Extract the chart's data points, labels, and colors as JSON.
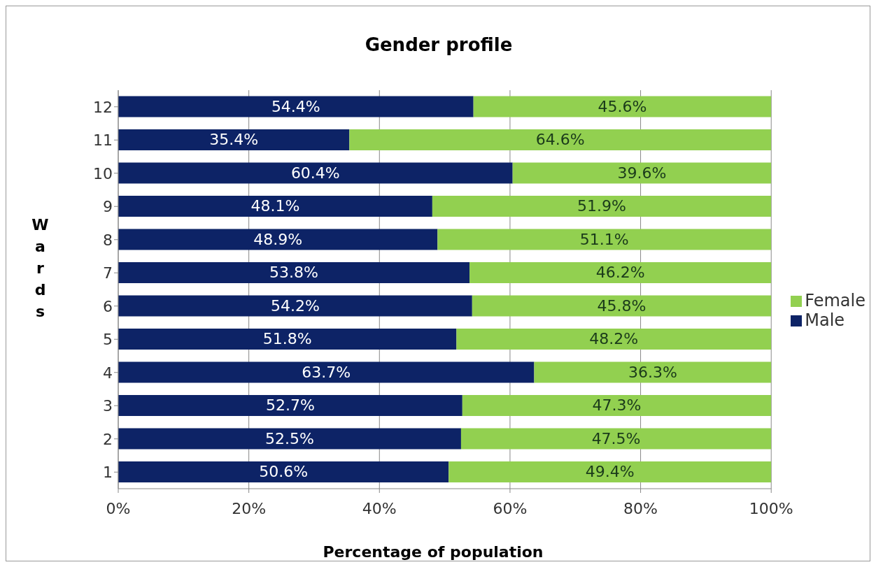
{
  "chart_data": {
    "type": "bar",
    "orientation": "horizontal",
    "stacked": true,
    "title": "Gender profile",
    "xlabel": "Percentage of population",
    "ylabel": "Wards",
    "categories": [
      "12",
      "11",
      "10",
      "9",
      "8",
      "7",
      "6",
      "5",
      "4",
      "3",
      "2",
      "1"
    ],
    "series": [
      {
        "name": "Male",
        "color": "#0d2366",
        "values": [
          54.4,
          35.4,
          60.4,
          48.1,
          48.9,
          53.8,
          54.2,
          51.8,
          63.7,
          52.7,
          52.5,
          50.6
        ],
        "value_labels": [
          "54.4%",
          "35.4%",
          "60.4%",
          "48.1%",
          "48.9%",
          "53.8%",
          "54.2%",
          "51.8%",
          "63.7%",
          "52.7%",
          "52.5%",
          "50.6%"
        ]
      },
      {
        "name": "Female",
        "color": "#92d050",
        "values": [
          45.6,
          64.6,
          39.6,
          51.9,
          51.1,
          46.2,
          45.8,
          48.2,
          36.3,
          47.3,
          47.5,
          49.4
        ],
        "value_labels": [
          "45.6%",
          "64.6%",
          "39.6%",
          "51.9%",
          "51.1%",
          "46.2%",
          "45.8%",
          "48.2%",
          "36.3%",
          "47.3%",
          "47.5%",
          "49.4%"
        ]
      }
    ],
    "xlim": [
      0,
      100
    ],
    "xticks": [
      {
        "value": 0,
        "label": "0%"
      },
      {
        "value": 20,
        "label": "20%"
      },
      {
        "value": 40,
        "label": "40%"
      },
      {
        "value": 60,
        "label": "60%"
      },
      {
        "value": 80,
        "label": "80%"
      },
      {
        "value": 100,
        "label": "100%"
      }
    ],
    "grid": "x",
    "legend": "right"
  }
}
